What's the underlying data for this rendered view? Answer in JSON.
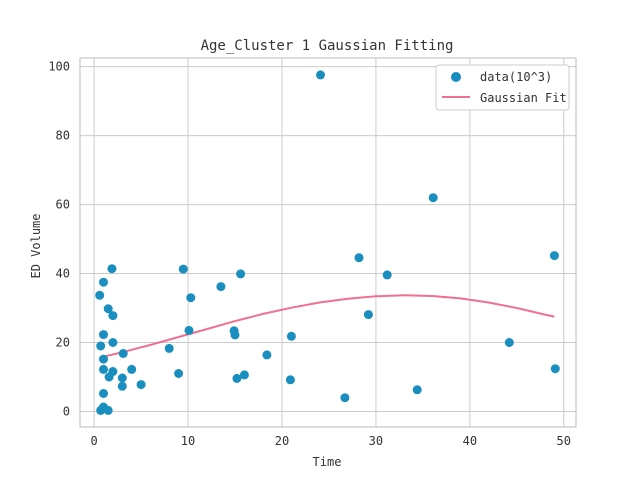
{
  "chart_data": {
    "type": "scatter",
    "title": "Age_Cluster 1 Gaussian Fitting",
    "xlabel": "Time",
    "ylabel": "ED Volume",
    "xlim": [
      -1.5,
      51.3
    ],
    "ylim": [
      -4.5,
      102.5
    ],
    "xticks": [
      0,
      10,
      20,
      30,
      40,
      50
    ],
    "yticks": [
      0,
      20,
      40,
      60,
      80,
      100
    ],
    "grid": true,
    "legend_position": "top-right",
    "series": [
      {
        "name": "data(10^3)",
        "kind": "scatter",
        "color": "#1a8fbf",
        "points": [
          [
            0.6,
            33.7
          ],
          [
            0.7,
            0.3
          ],
          [
            0.7,
            19
          ],
          [
            1.0,
            37.5
          ],
          [
            1.0,
            15.2
          ],
          [
            1.0,
            22.3
          ],
          [
            1.0,
            12.2
          ],
          [
            1.0,
            5.2
          ],
          [
            1.0,
            1.3
          ],
          [
            1.5,
            0.3
          ],
          [
            1.5,
            29.8
          ],
          [
            1.6,
            10.0
          ],
          [
            1.9,
            41.4
          ],
          [
            2.0,
            27.8
          ],
          [
            2.0,
            20.0
          ],
          [
            2.0,
            11.6
          ],
          [
            3.0,
            9.7
          ],
          [
            3.0,
            7.3
          ],
          [
            3.1,
            16.8
          ],
          [
            4.0,
            12.2
          ],
          [
            5.0,
            7.8
          ],
          [
            8.0,
            18.3
          ],
          [
            9.0,
            11.0
          ],
          [
            9.5,
            41.3
          ],
          [
            10.1,
            23.5
          ],
          [
            10.3,
            33.0
          ],
          [
            13.5,
            36.2
          ],
          [
            14.9,
            23.4
          ],
          [
            15.0,
            22.2
          ],
          [
            15.2,
            9.6
          ],
          [
            15.6,
            39.9
          ],
          [
            16.0,
            10.6
          ],
          [
            18.4,
            16.4
          ],
          [
            20.9,
            9.2
          ],
          [
            21.0,
            21.8
          ],
          [
            24.1,
            97.6
          ],
          [
            26.7,
            4.0
          ],
          [
            28.2,
            44.6
          ],
          [
            29.2,
            28.1
          ],
          [
            31.2,
            39.6
          ],
          [
            34.4,
            6.3
          ],
          [
            36.1,
            62.0
          ],
          [
            44.2,
            20.0
          ],
          [
            49.0,
            45.2
          ],
          [
            49.1,
            12.4
          ]
        ]
      },
      {
        "name": "Gaussian Fit",
        "kind": "line",
        "color": "#f07090",
        "points": [
          [
            0.6,
            15.6
          ],
          [
            3,
            17.2
          ],
          [
            6,
            19.3
          ],
          [
            9,
            21.6
          ],
          [
            12,
            23.9
          ],
          [
            15,
            26.2
          ],
          [
            18,
            28.3
          ],
          [
            21,
            30.1
          ],
          [
            24,
            31.6
          ],
          [
            27,
            32.7
          ],
          [
            30,
            33.4
          ],
          [
            33,
            33.7
          ],
          [
            36,
            33.5
          ],
          [
            39,
            32.8
          ],
          [
            42,
            31.6
          ],
          [
            45,
            30.0
          ],
          [
            48,
            28.1
          ],
          [
            49,
            27.5
          ]
        ]
      }
    ]
  }
}
